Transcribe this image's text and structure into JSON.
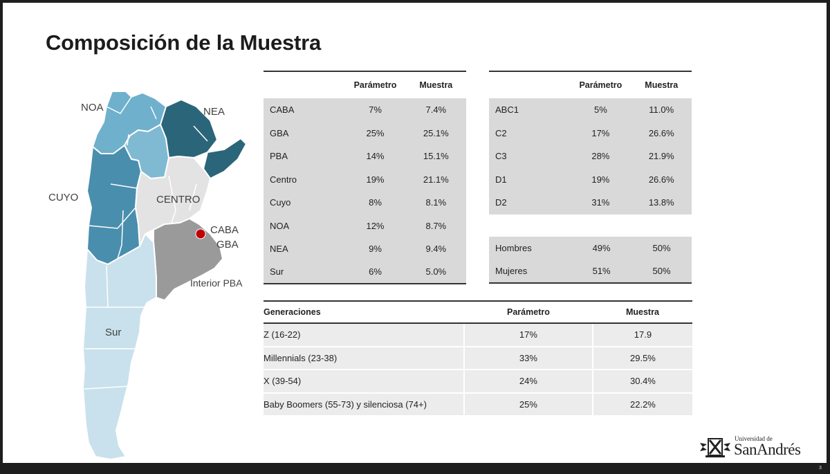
{
  "slide": {
    "title": "Composición de la Muestra",
    "page_number": "3"
  },
  "map": {
    "labels": {
      "noa": "NOA",
      "nea": "NEA",
      "cuyo": "CUYO",
      "centro": "CENTRO",
      "caba": "CABA",
      "gba": "GBA",
      "interior_pba": "Interior PBA",
      "sur": "Sur"
    },
    "colors": {
      "noa": "#6fb0cc",
      "nea": "#2b6579",
      "cuyo": "#4a8ead",
      "centro": "#e3e3e3",
      "pba": "#9a9a9a",
      "sur": "#c9e1ec",
      "caba": "#c00000"
    }
  },
  "region_table": {
    "headers": {
      "param": "Parámetro",
      "sample": "Muestra"
    },
    "rows": [
      {
        "label": "CABA",
        "param": "7%",
        "sample": "7.4%"
      },
      {
        "label": "GBA",
        "param": "25%",
        "sample": "25.1%"
      },
      {
        "label": "PBA",
        "param": "14%",
        "sample": "15.1%"
      },
      {
        "label": "Centro",
        "param": "19%",
        "sample": "21.1%"
      },
      {
        "label": "Cuyo",
        "param": "8%",
        "sample": "8.1%"
      },
      {
        "label": "NOA",
        "param": "12%",
        "sample": "8.7%"
      },
      {
        "label": "NEA",
        "param": "9%",
        "sample": "9.4%"
      },
      {
        "label": "Sur",
        "param": "6%",
        "sample": "5.0%"
      }
    ]
  },
  "nse_table": {
    "headers": {
      "param": "Parámetro",
      "sample": "Muestra"
    },
    "rows": [
      {
        "label": "ABC1",
        "param": "5%",
        "sample": "11.0%"
      },
      {
        "label": "C2",
        "param": "17%",
        "sample": "26.6%"
      },
      {
        "label": "C3",
        "param": "28%",
        "sample": "21.9%"
      },
      {
        "label": "D1",
        "param": "19%",
        "sample": "26.6%"
      },
      {
        "label": "D2",
        "param": "31%",
        "sample": "13.8%"
      }
    ]
  },
  "gender_table": {
    "rows": [
      {
        "label": "Hombres",
        "param": "49%",
        "sample": "50%"
      },
      {
        "label": "Mujeres",
        "param": "51%",
        "sample": "50%"
      }
    ]
  },
  "generation_table": {
    "headers": {
      "label": "Generaciones",
      "param": "Parámetro",
      "sample": "Muestra"
    },
    "rows": [
      {
        "label": "Z (16-22)",
        "param": "17%",
        "sample": "17.9"
      },
      {
        "label": "Millennials (23-38)",
        "param": "33%",
        "sample": "29.5%"
      },
      {
        "label": "X (39-54)",
        "param": "24%",
        "sample": "30.4%"
      },
      {
        "label": "Baby Boomers (55-73) y silenciosa (74+)",
        "param": "25%",
        "sample": "22.2%"
      }
    ]
  },
  "logo": {
    "small": "Universidad de",
    "big": "SanAndrés"
  }
}
